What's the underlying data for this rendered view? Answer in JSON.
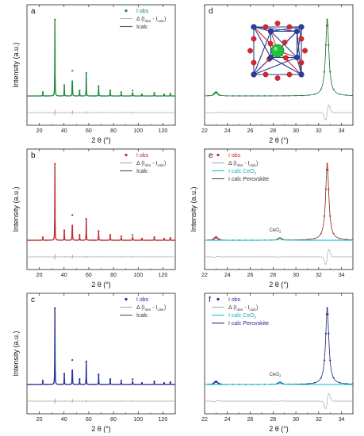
{
  "figure": {
    "background": "#ffffff"
  },
  "chart_data": [
    {
      "id": "a",
      "type": "line",
      "panel_label": "a",
      "xlabel": "2 θ (°)",
      "ylabel": "Intensity (a.u.)",
      "xlim": [
        10,
        130
      ],
      "xticks": [
        20,
        40,
        60,
        80,
        100,
        120
      ],
      "color": "#1a8a3a",
      "legend": [
        {
          "label": "I obs",
          "kind": "dot",
          "color": "#1a8a3a"
        },
        {
          "label": "Δ (I",
          "sub1": "obs",
          "mid": " - I",
          "sub2": "calc",
          "tail": ")",
          "kind": "line",
          "color": "#b0b0b0"
        },
        {
          "label": "Icalc",
          "kind": "line",
          "color": "#555555"
        }
      ],
      "peaks": [
        [
          22.8,
          0.05
        ],
        [
          32.6,
          1.0
        ],
        [
          40.2,
          0.14
        ],
        [
          46.7,
          0.33
        ],
        [
          52.6,
          0.07
        ],
        [
          58.0,
          0.3
        ],
        [
          68.0,
          0.13
        ],
        [
          77.4,
          0.07
        ],
        [
          86.3,
          0.05
        ],
        [
          95.5,
          0.07
        ],
        [
          103.0,
          0.02
        ],
        [
          113.0,
          0.04
        ],
        [
          121.0,
          0.02
        ],
        [
          126.0,
          0.03
        ]
      ],
      "ylim": [
        0,
        1.1
      ]
    },
    {
      "id": "b",
      "type": "line",
      "panel_label": "b",
      "xlabel": "2 θ (°)",
      "ylabel": "Intensity (a.u.)",
      "xlim": [
        10,
        130
      ],
      "xticks": [
        20,
        40,
        60,
        80,
        100,
        120
      ],
      "color": "#c0282a",
      "legend": [
        {
          "label": "I obs",
          "kind": "dot",
          "color": "#c0282a"
        },
        {
          "label": "Δ (I",
          "sub1": "obs",
          "mid": " - I",
          "sub2": "calc",
          "tail": ")",
          "kind": "line",
          "color": "#b0b0b0"
        },
        {
          "label": "Icalc",
          "kind": "line",
          "color": "#555555"
        }
      ],
      "peaks": [
        [
          22.8,
          0.04
        ],
        [
          32.6,
          1.0
        ],
        [
          40.2,
          0.13
        ],
        [
          46.7,
          0.33
        ],
        [
          52.6,
          0.07
        ],
        [
          58.0,
          0.28
        ],
        [
          68.0,
          0.12
        ],
        [
          77.4,
          0.07
        ],
        [
          86.3,
          0.05
        ],
        [
          95.5,
          0.07
        ],
        [
          103.0,
          0.02
        ],
        [
          113.0,
          0.04
        ],
        [
          121.0,
          0.02
        ],
        [
          126.0,
          0.03
        ]
      ],
      "ylim": [
        0,
        1.1
      ]
    },
    {
      "id": "c",
      "type": "line",
      "panel_label": "c",
      "xlabel": "2 θ (°)",
      "ylabel": "Intensity (a.u.)",
      "xlim": [
        10,
        130
      ],
      "xticks": [
        20,
        40,
        60,
        80,
        100,
        120
      ],
      "color": "#1f2a9a",
      "legend": [
        {
          "label": "I obs",
          "kind": "dot",
          "color": "#1f2a9a"
        },
        {
          "label": "Δ (I",
          "sub1": "obs",
          "mid": " - I",
          "sub2": "calc",
          "tail": ")",
          "kind": "line",
          "color": "#b0b0b0"
        },
        {
          "label": "Icalc",
          "kind": "line",
          "color": "#555555"
        }
      ],
      "peaks": [
        [
          22.8,
          0.05
        ],
        [
          32.6,
          1.0
        ],
        [
          40.2,
          0.14
        ],
        [
          46.7,
          0.32
        ],
        [
          52.6,
          0.07
        ],
        [
          58.0,
          0.3
        ],
        [
          68.0,
          0.13
        ],
        [
          77.4,
          0.07
        ],
        [
          86.3,
          0.05
        ],
        [
          95.5,
          0.07
        ],
        [
          103.0,
          0.02
        ],
        [
          113.0,
          0.04
        ],
        [
          121.0,
          0.02
        ],
        [
          126.0,
          0.03
        ]
      ],
      "ylim": [
        0,
        1.1
      ]
    },
    {
      "id": "d",
      "type": "line",
      "panel_label": "d",
      "xlabel": "2 θ (°)",
      "ylabel": "",
      "xlim": [
        22,
        35
      ],
      "xticks": [
        22,
        24,
        26,
        28,
        30,
        32,
        34
      ],
      "color": "#1a8a3a",
      "legend": [],
      "peaks": [
        [
          23.0,
          0.05
        ],
        [
          32.75,
          1.0
        ]
      ],
      "peak_width": 0.17,
      "ylim": [
        0,
        1.1
      ],
      "has_structure_inset": true
    },
    {
      "id": "e",
      "type": "line",
      "panel_label": "e",
      "xlabel": "2 θ (°)",
      "ylabel": "Intensity (a.u.)",
      "xlim": [
        22,
        35
      ],
      "xticks": [
        22,
        24,
        26,
        28,
        30,
        32,
        34
      ],
      "color": "#c0282a",
      "legend": [
        {
          "label": "I obs",
          "kind": "dot",
          "color": "#c0282a"
        },
        {
          "label": "Δ (I",
          "sub1": "obs",
          "mid": " - I",
          "sub2": "calc",
          "tail": ")",
          "kind": "line",
          "color": "#b0b0b0"
        },
        {
          "label": "I calc CeO",
          "sub1": "2",
          "kind": "line",
          "color": "#19c4cf",
          "text_color": "#19a9c4"
        },
        {
          "label": "I calc Perovskite",
          "kind": "line",
          "color": "#555555"
        }
      ],
      "peaks": [
        [
          23.0,
          0.04
        ],
        [
          28.6,
          0.025
        ],
        [
          32.75,
          1.0
        ]
      ],
      "peak_width": 0.17,
      "ceo2_peak": [
        28.6,
        0.025
      ],
      "annotation": {
        "label": "CeO",
        "sub": "2",
        "x": 28.6
      },
      "ylim": [
        0,
        1.1
      ]
    },
    {
      "id": "f",
      "type": "line",
      "panel_label": "f",
      "xlabel": "2 θ (°)",
      "ylabel": "",
      "xlim": [
        22,
        35
      ],
      "xticks": [
        22,
        24,
        26,
        28,
        30,
        32,
        34
      ],
      "color": "#1f2a9a",
      "legend": [
        {
          "label": "I obs",
          "kind": "dot",
          "color": "#1f2a9a"
        },
        {
          "label": "Δ (I",
          "sub1": "obs",
          "mid": " - I",
          "sub2": "calc",
          "tail": ")",
          "kind": "line",
          "color": "#b0b0b0"
        },
        {
          "label": "I calc CeO",
          "sub1": "2",
          "kind": "line",
          "color": "#19c4cf",
          "text_color": "#19a9c4"
        },
        {
          "label": "I calc Perovskite",
          "kind": "line",
          "color": "#1f2a9a",
          "text_color": "#1f2a9a"
        }
      ],
      "peaks": [
        [
          23.0,
          0.04
        ],
        [
          28.6,
          0.025
        ],
        [
          32.75,
          1.0
        ]
      ],
      "peak_width": 0.17,
      "ceo2_peak": [
        28.6,
        0.025
      ],
      "annotation": {
        "label": "CeO",
        "sub": "2",
        "x": 28.6
      },
      "ylim": [
        0,
        1.1
      ]
    }
  ]
}
